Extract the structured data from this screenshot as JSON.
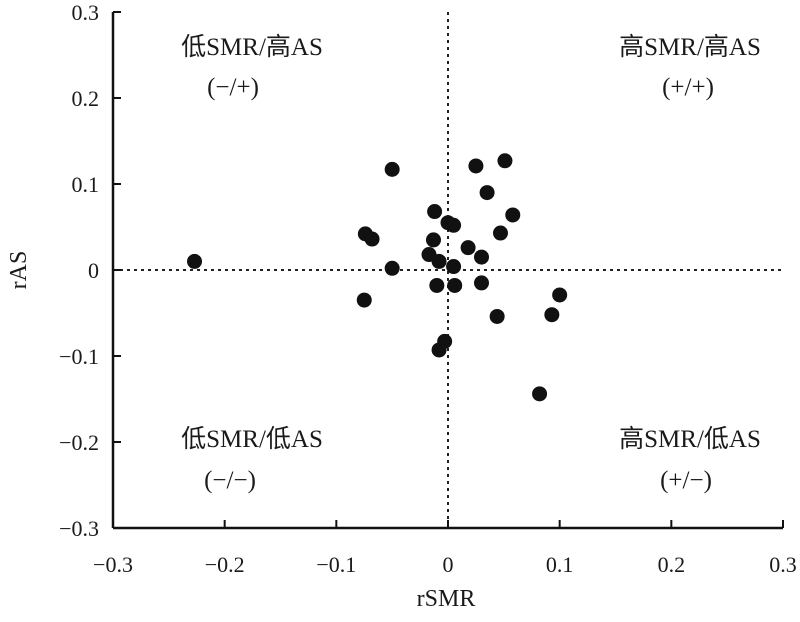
{
  "chart_data": {
    "type": "scatter",
    "xlabel": "rSMR",
    "ylabel": "rAS",
    "xlim": [
      -0.3,
      0.3
    ],
    "ylim": [
      -0.3,
      0.3
    ],
    "x_ticks": [
      -0.3,
      -0.2,
      -0.1,
      0,
      0.1,
      0.2,
      0.3
    ],
    "y_ticks": [
      -0.3,
      -0.2,
      -0.1,
      0,
      0.1,
      0.2,
      0.3
    ],
    "x_tick_labels": [
      "−0.3",
      "−0.2",
      "−0.1",
      "0",
      "0.1",
      "0.2",
      "0.3"
    ],
    "y_tick_labels": [
      "−0.3",
      "−0.2",
      "−0.1",
      "0",
      "0.1",
      "0.2",
      "0.3"
    ],
    "reference_lines": {
      "x": 0,
      "y": 0,
      "style": "dotted"
    },
    "grid": false,
    "marker_color": "#111111",
    "quadrant_labels": {
      "top_left": {
        "title": "低SMR/高AS",
        "sign": "(−/+)"
      },
      "top_right": {
        "title": "高SMR/高AS",
        "sign": "(+/+)"
      },
      "bottom_left": {
        "title": "低SMR/低AS",
        "sign": "(−/−)"
      },
      "bottom_right": {
        "title": "高SMR/低AS",
        "sign": "(+/−)"
      }
    },
    "points": [
      {
        "x": -0.227,
        "y": 0.01
      },
      {
        "x": -0.074,
        "y": 0.042
      },
      {
        "x": -0.068,
        "y": 0.036
      },
      {
        "x": -0.075,
        "y": -0.035
      },
      {
        "x": -0.05,
        "y": 0.117
      },
      {
        "x": -0.05,
        "y": 0.002
      },
      {
        "x": -0.012,
        "y": 0.068
      },
      {
        "x": -0.017,
        "y": 0.018
      },
      {
        "x": -0.013,
        "y": 0.035
      },
      {
        "x": -0.008,
        "y": 0.01
      },
      {
        "x": -0.01,
        "y": -0.018
      },
      {
        "x": 0.0,
        "y": 0.055
      },
      {
        "x": 0.005,
        "y": 0.052
      },
      {
        "x": 0.005,
        "y": 0.004
      },
      {
        "x": 0.006,
        "y": -0.018
      },
      {
        "x": -0.003,
        "y": -0.083
      },
      {
        "x": -0.008,
        "y": -0.093
      },
      {
        "x": 0.018,
        "y": 0.026
      },
      {
        "x": 0.025,
        "y": 0.121
      },
      {
        "x": 0.03,
        "y": 0.015
      },
      {
        "x": 0.03,
        "y": -0.015
      },
      {
        "x": 0.035,
        "y": 0.09
      },
      {
        "x": 0.047,
        "y": 0.043
      },
      {
        "x": 0.051,
        "y": 0.127
      },
      {
        "x": 0.058,
        "y": 0.064
      },
      {
        "x": 0.044,
        "y": -0.054
      },
      {
        "x": 0.082,
        "y": -0.144
      },
      {
        "x": 0.093,
        "y": -0.052
      },
      {
        "x": 0.1,
        "y": -0.029
      }
    ]
  }
}
